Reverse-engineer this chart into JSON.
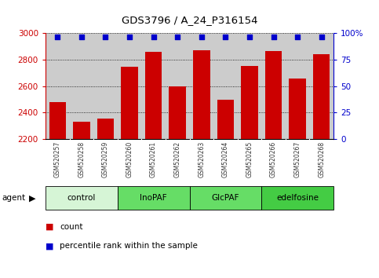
{
  "title": "GDS3796 / A_24_P316154",
  "samples": [
    "GSM520257",
    "GSM520258",
    "GSM520259",
    "GSM520260",
    "GSM520261",
    "GSM520262",
    "GSM520263",
    "GSM520264",
    "GSM520265",
    "GSM520266",
    "GSM520267",
    "GSM520268"
  ],
  "count_values": [
    2480,
    2330,
    2355,
    2745,
    2860,
    2600,
    2870,
    2495,
    2755,
    2865,
    2660,
    2840
  ],
  "percentile_values": [
    97,
    97,
    97,
    97,
    97,
    97,
    97,
    97,
    97,
    97,
    97,
    97
  ],
  "groups": [
    {
      "label": "control",
      "start": 0,
      "end": 3,
      "color": "#d6f5d6"
    },
    {
      "label": "InoPAF",
      "start": 3,
      "end": 6,
      "color": "#66dd66"
    },
    {
      "label": "GlcPAF",
      "start": 6,
      "end": 9,
      "color": "#66dd66"
    },
    {
      "label": "edelfosine",
      "start": 9,
      "end": 12,
      "color": "#44cc44"
    }
  ],
  "ylim_left": [
    2200,
    3000
  ],
  "ylim_right": [
    0,
    100
  ],
  "yticks_left": [
    2200,
    2400,
    2600,
    2800,
    3000
  ],
  "yticks_right": [
    0,
    25,
    50,
    75,
    100
  ],
  "bar_color": "#cc0000",
  "dot_color": "#0000cc",
  "plot_bg": "#cccccc",
  "left_axis_color": "#cc0000",
  "right_axis_color": "#0000cc",
  "legend_count_color": "#cc0000",
  "legend_pct_color": "#0000cc",
  "fig_width": 4.83,
  "fig_height": 3.54,
  "dpi": 100
}
